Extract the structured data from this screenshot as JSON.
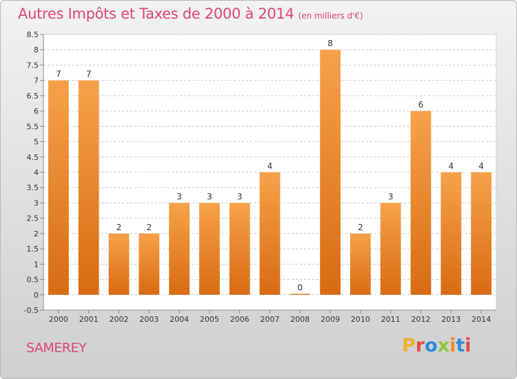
{
  "header": {
    "title": "Autres Impôts et Taxes de 2000 à 2014",
    "unit_note": "(en milliers d'€)"
  },
  "footer": {
    "commune": "SAMEREY",
    "logo_text": "Proxiti",
    "logo_colors": [
      "#f0b02a",
      "#e04a4a",
      "#2f8ad8",
      "#8cc63f",
      "#f08c1e",
      "#2f8ad8",
      "#e04a4a"
    ]
  },
  "colors": {
    "bar_light": "#f6a24a",
    "bar_dark": "#d86b12",
    "accent": "#e0457a",
    "grid": "#c8c8c8",
    "axis_text": "#333333"
  },
  "chart_data": {
    "type": "bar",
    "title": "Autres Impôts et Taxes de 2000 à 2014",
    "subtitle": "(en milliers d'€)",
    "categories": [
      "2000",
      "2001",
      "2002",
      "2003",
      "2004",
      "2005",
      "2006",
      "2007",
      "2008",
      "2009",
      "2010",
      "2011",
      "2012",
      "2013",
      "2014"
    ],
    "values": [
      7,
      7,
      2,
      2,
      3,
      3,
      3,
      4,
      0,
      8,
      2,
      3,
      6,
      4,
      4
    ],
    "value_labels": [
      "7",
      "7",
      "2",
      "2",
      "3",
      "3",
      "3",
      "4",
      "0",
      "8",
      "2",
      "3",
      "6",
      "4",
      "4"
    ],
    "y_ticks": [
      "-0.5",
      "0",
      "0.5",
      "1",
      "1.5",
      "2",
      "2.5",
      "3",
      "3.5",
      "4",
      "4.5",
      "5",
      "5.5",
      "6",
      "6.5",
      "7",
      "7.5",
      "8",
      "8.5"
    ],
    "ylim": [
      -0.5,
      8.5
    ],
    "grid": true,
    "legend": "none",
    "xlabel": "",
    "ylabel": ""
  }
}
